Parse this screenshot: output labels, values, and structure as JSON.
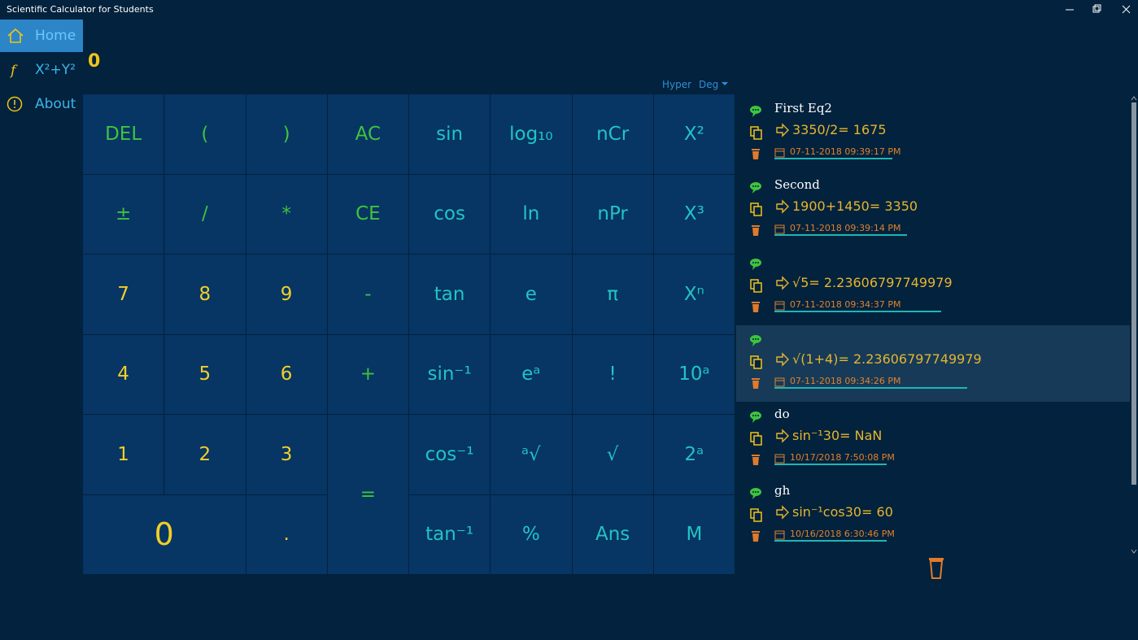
{
  "window": {
    "title": "Scientific Calculator for Students"
  },
  "nav": [
    {
      "label": "Home"
    },
    {
      "label": "X²+Y²"
    },
    {
      "label": "About"
    }
  ],
  "display": "0",
  "mode": {
    "hyper": "Hyper",
    "angle": "Deg"
  },
  "keys": [
    [
      "DEL",
      "(",
      ")",
      "AC",
      "sin",
      "log₁₀",
      "nCr",
      "X²"
    ],
    [
      "±",
      "/",
      "*",
      "CE",
      "cos",
      "ln",
      "nPr",
      "X³"
    ],
    [
      "7",
      "8",
      "9",
      "-",
      "tan",
      "e",
      "π",
      "Xⁿ"
    ],
    [
      "4",
      "5",
      "6",
      "+",
      "sin⁻¹",
      "eᵃ",
      "!",
      "10ᵃ"
    ],
    [
      "1",
      "2",
      "3",
      "=",
      "cos⁻¹",
      "ᵃ√",
      "√",
      "2ᵃ"
    ],
    [
      "0",
      ".",
      "tan⁻¹",
      "%",
      "Ans",
      "M"
    ]
  ],
  "history": [
    {
      "name": "First Eq2",
      "expression": "3350/2= 1675",
      "timestamp": "07-11-2018 09:39:17 PM"
    },
    {
      "name": "Second",
      "expression": "1900+1450= 3350",
      "timestamp": "07-11-2018 09:39:14 PM"
    },
    {
      "expression": "√5= 2.23606797749979",
      "timestamp": "07-11-2018 09:34:37 PM"
    },
    {
      "expression": "√(1+4)= 2.23606797749979",
      "timestamp": "07-11-2018 09:34:26 PM"
    },
    {
      "name": "do",
      "expression": "sin⁻¹30= NaN",
      "timestamp": "10/17/2018 7:50:08 PM"
    },
    {
      "name": "gh",
      "expression": "sin⁻¹cos30= 60",
      "timestamp": "10/16/2018 6:30:46 PM"
    }
  ]
}
